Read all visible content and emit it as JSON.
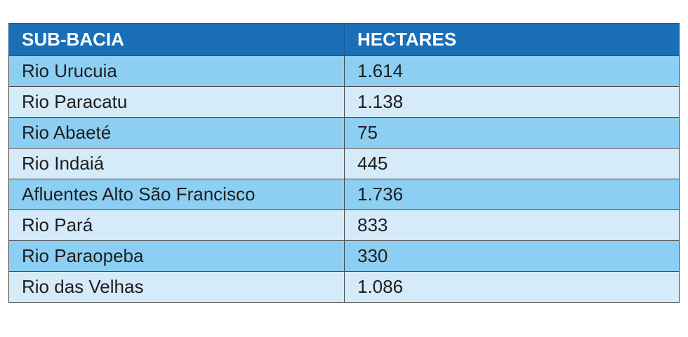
{
  "table": {
    "header": [
      "SUB-BACIA",
      "HECTARES"
    ],
    "rows": [
      [
        "Rio Urucuia",
        "1.614"
      ],
      [
        "Rio Paracatu",
        "1.138"
      ],
      [
        "Rio Abaeté",
        "75"
      ],
      [
        "Rio Indaiá",
        "445"
      ],
      [
        "Afluentes Alto São Francisco",
        "1.736"
      ],
      [
        "Rio Pará",
        "833"
      ],
      [
        "Rio Paraopeba",
        "330"
      ],
      [
        "Rio das Velhas",
        "1.086"
      ]
    ]
  }
}
